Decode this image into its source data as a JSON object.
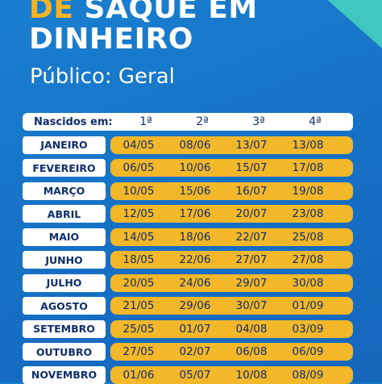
{
  "heading": {
    "line1_accent": "DE",
    "line1_rest": "SAQUE EM",
    "line2": "DINHEIRO"
  },
  "subtitle": "Público: Geral",
  "table": {
    "header_label": "Nascidos em:",
    "columns": [
      "1ª",
      "2ª",
      "3ª",
      "4ª"
    ],
    "rows": [
      {
        "month": "JANEIRO",
        "dates": [
          "04/05",
          "08/06",
          "13/07",
          "13/08"
        ]
      },
      {
        "month": "FEVEREIRO",
        "dates": [
          "06/05",
          "10/06",
          "15/07",
          "17/08"
        ]
      },
      {
        "month": "MARÇO",
        "dates": [
          "10/05",
          "15/06",
          "16/07",
          "19/08"
        ]
      },
      {
        "month": "ABRIL",
        "dates": [
          "12/05",
          "17/06",
          "20/07",
          "23/08"
        ]
      },
      {
        "month": "MAIO",
        "dates": [
          "14/05",
          "18/06",
          "22/07",
          "25/08"
        ]
      },
      {
        "month": "JUNHO",
        "dates": [
          "18/05",
          "22/06",
          "27/07",
          "27/08"
        ]
      },
      {
        "month": "JULHO",
        "dates": [
          "20/05",
          "24/06",
          "29/07",
          "30/08"
        ]
      },
      {
        "month": "AGOSTO",
        "dates": [
          "21/05",
          "29/06",
          "30/07",
          "01/09"
        ]
      },
      {
        "month": "SETEMBRO",
        "dates": [
          "25/05",
          "01/07",
          "04/08",
          "03/09"
        ]
      },
      {
        "month": "OUTUBRO",
        "dates": [
          "27/05",
          "02/07",
          "06/08",
          "06/09"
        ]
      },
      {
        "month": "NOVEMBRO",
        "dates": [
          "01/06",
          "05/07",
          "10/08",
          "08/09"
        ]
      }
    ]
  },
  "colors": {
    "background": "#1670c4",
    "accent": "#f5b324",
    "row_fill": "#f3b72a",
    "text_dark": "#0d2d6b",
    "corner": "#3fc7c0"
  }
}
